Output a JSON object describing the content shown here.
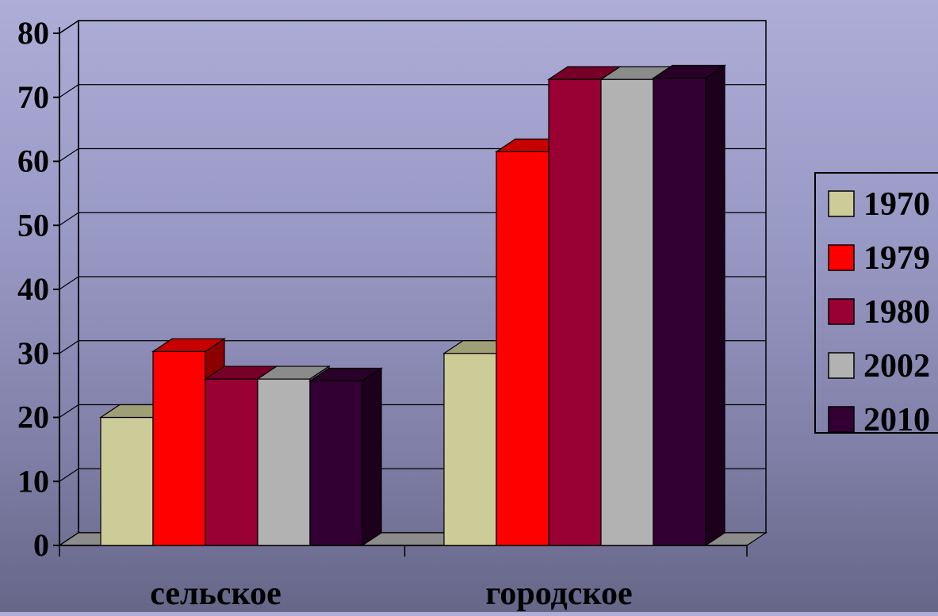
{
  "chart_data": {
    "type": "bar",
    "title": "",
    "xlabel": "",
    "ylabel": "",
    "categories": [
      "сельское",
      "городское"
    ],
    "series": [
      {
        "name": "1970",
        "values": [
          20,
          30
        ],
        "color": "#cccc99"
      },
      {
        "name": "1979",
        "values": [
          30.3,
          61.5
        ],
        "color": "#ff0000"
      },
      {
        "name": "1980",
        "values": [
          26,
          72.8
        ],
        "color": "#990033"
      },
      {
        "name": "2002",
        "values": [
          26,
          72.8
        ],
        "color": "#b2b2b2"
      },
      {
        "name": "2010",
        "values": [
          25.7,
          73
        ],
        "color": "#330033"
      }
    ],
    "ylim": [
      0,
      80
    ],
    "y_ticks": [
      "0",
      "10",
      "20",
      "30",
      "40",
      "50",
      "60",
      "70",
      "80"
    ],
    "grid": true,
    "style": "3d",
    "legend_position": "right"
  }
}
